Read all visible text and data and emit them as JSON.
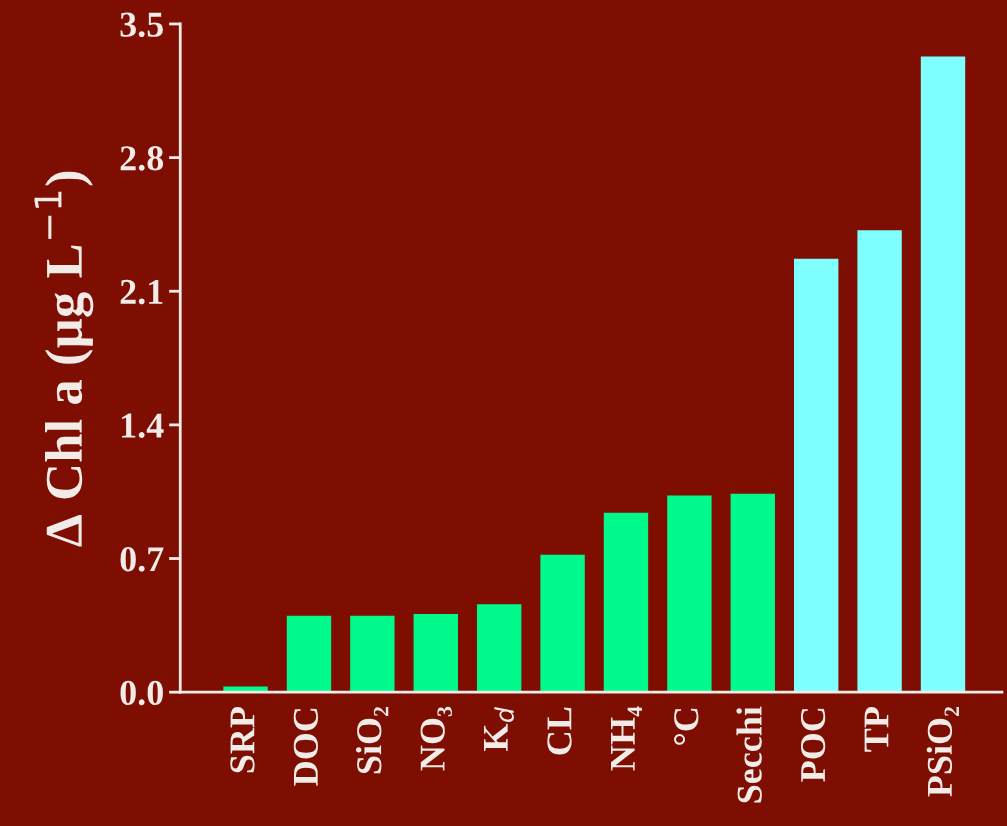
{
  "chart_data": {
    "type": "bar",
    "ylabel": "Δ Chl a (µg L$^{−1}$)",
    "categories": [
      "SRP",
      "DOC",
      "SiO₂",
      "NO₃",
      "K$_{d}$",
      "CL",
      "NH₄",
      "°C",
      "Secchi",
      "POC",
      "TP",
      "PSiO₂"
    ],
    "values": [
      0.03,
      0.4,
      0.4,
      0.41,
      0.46,
      0.72,
      0.94,
      1.03,
      1.04,
      2.27,
      2.42,
      3.33
    ],
    "colors": [
      "#00fa8c",
      "#00fa8c",
      "#00fa8c",
      "#00fa8c",
      "#00fa8c",
      "#00fa8c",
      "#00fa8c",
      "#00fa8c",
      "#00fa8c",
      "#7fffff",
      "#7fffff",
      "#7fffff"
    ],
    "ylim": [
      0,
      3.5
    ],
    "yticks": [
      {
        "value": 0,
        "label": "0.0"
      },
      0.7,
      1.4,
      2.1,
      2.8,
      3.5
    ],
    "grid": false
  }
}
